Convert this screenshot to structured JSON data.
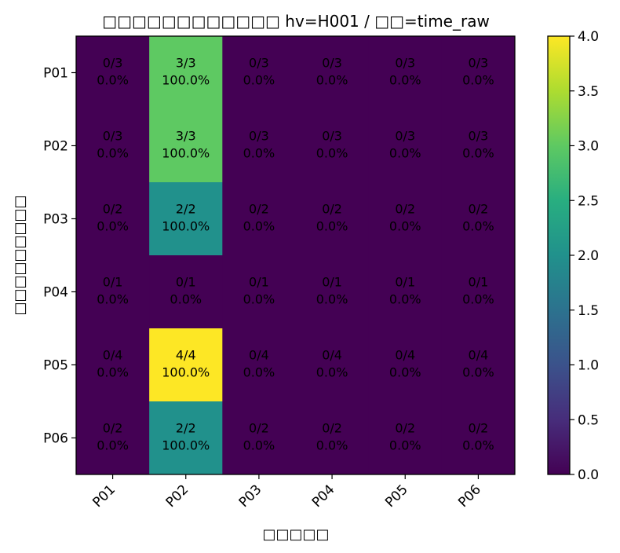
{
  "chart_data": {
    "type": "heatmap",
    "title": "□□□□□□□□□□□□ hv=H001 / □□=time_raw",
    "xlabel": "□□□□□",
    "ylabel": "□□□□□□□□□",
    "x_categories": [
      "P01",
      "P02",
      "P03",
      "P04",
      "P05",
      "P06"
    ],
    "y_categories": [
      "P01",
      "P02",
      "P03",
      "P04",
      "P05",
      "P06"
    ],
    "values": [
      [
        0,
        3,
        0,
        0,
        0,
        0
      ],
      [
        0,
        3,
        0,
        0,
        0,
        0
      ],
      [
        0,
        2,
        0,
        0,
        0,
        0
      ],
      [
        0,
        0,
        0,
        0,
        0,
        0
      ],
      [
        0,
        4,
        0,
        0,
        0,
        0
      ],
      [
        0,
        2,
        0,
        0,
        0,
        0
      ]
    ],
    "cell_labels": [
      [
        [
          "0/3",
          "0.0%"
        ],
        [
          "3/3",
          "100.0%"
        ],
        [
          "0/3",
          "0.0%"
        ],
        [
          "0/3",
          "0.0%"
        ],
        [
          "0/3",
          "0.0%"
        ],
        [
          "0/3",
          "0.0%"
        ]
      ],
      [
        [
          "0/3",
          "0.0%"
        ],
        [
          "3/3",
          "100.0%"
        ],
        [
          "0/3",
          "0.0%"
        ],
        [
          "0/3",
          "0.0%"
        ],
        [
          "0/3",
          "0.0%"
        ],
        [
          "0/3",
          "0.0%"
        ]
      ],
      [
        [
          "0/2",
          "0.0%"
        ],
        [
          "2/2",
          "100.0%"
        ],
        [
          "0/2",
          "0.0%"
        ],
        [
          "0/2",
          "0.0%"
        ],
        [
          "0/2",
          "0.0%"
        ],
        [
          "0/2",
          "0.0%"
        ]
      ],
      [
        [
          "0/1",
          "0.0%"
        ],
        [
          "0/1",
          "0.0%"
        ],
        [
          "0/1",
          "0.0%"
        ],
        [
          "0/1",
          "0.0%"
        ],
        [
          "0/1",
          "0.0%"
        ],
        [
          "0/1",
          "0.0%"
        ]
      ],
      [
        [
          "0/4",
          "0.0%"
        ],
        [
          "4/4",
          "100.0%"
        ],
        [
          "0/4",
          "0.0%"
        ],
        [
          "0/4",
          "0.0%"
        ],
        [
          "0/4",
          "0.0%"
        ],
        [
          "0/4",
          "0.0%"
        ]
      ],
      [
        [
          "0/2",
          "0.0%"
        ],
        [
          "2/2",
          "100.0%"
        ],
        [
          "0/2",
          "0.0%"
        ],
        [
          "0/2",
          "0.0%"
        ],
        [
          "0/2",
          "0.0%"
        ],
        [
          "0/2",
          "0.0%"
        ]
      ]
    ],
    "colorbar": {
      "colormap": "viridis",
      "range": [
        0,
        4
      ],
      "ticks": [
        "0.0",
        "0.5",
        "1.0",
        "1.5",
        "2.0",
        "2.5",
        "3.0",
        "3.5",
        "4.0"
      ]
    },
    "grid": false
  }
}
